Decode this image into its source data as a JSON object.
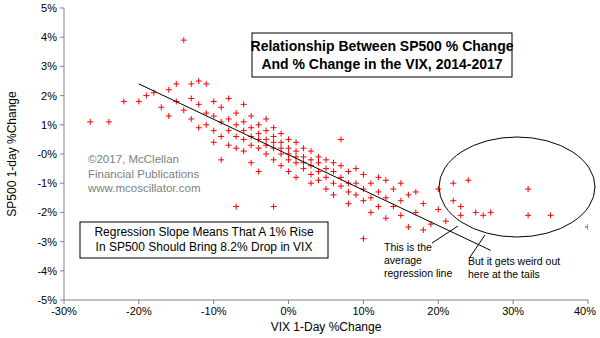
{
  "chart_data": {
    "type": "scatter",
    "title": [
      "Relationship Between SP500 % Change",
      "And % Change in the VIX, 2014-2017"
    ],
    "x_label": "VIX 1-Day %Change",
    "y_label": "SP500 1-day %Change",
    "xlim": [
      -30,
      40
    ],
    "ylim": [
      -5,
      5
    ],
    "xticks": [
      {
        "value": -30,
        "label": "-30%"
      },
      {
        "value": -20,
        "label": "-20%"
      },
      {
        "value": -10,
        "label": "-10%"
      },
      {
        "value": 0,
        "label": "0%"
      },
      {
        "value": 10,
        "label": "10%"
      },
      {
        "value": 20,
        "label": "20%"
      },
      {
        "value": 30,
        "label": "30%"
      },
      {
        "value": 40,
        "label": "40%"
      }
    ],
    "yticks": [
      {
        "value": 5,
        "label": "5%"
      },
      {
        "value": 4,
        "label": "4%"
      },
      {
        "value": 3,
        "label": "3%"
      },
      {
        "value": 2,
        "label": "2%"
      },
      {
        "value": 1,
        "label": "1%"
      },
      {
        "value": 0,
        "label": "-0%"
      },
      {
        "value": -1,
        "label": "-1%"
      },
      {
        "value": -2,
        "label": "-2%"
      },
      {
        "value": -3,
        "label": "-3%"
      },
      {
        "value": -4,
        "label": "-4%"
      },
      {
        "value": -5,
        "label": "-5%"
      }
    ],
    "grid": false,
    "series": [
      {
        "type": "scatter",
        "color": "#ff0000",
        "marker": "plus",
        "x": [
          -26.5,
          -24,
          -22,
          -20,
          -19,
          -18,
          -17,
          -16,
          -16,
          -15,
          -15,
          -14,
          -14,
          -13,
          -13,
          -13,
          -12,
          -12,
          -12,
          -11,
          -11,
          -11,
          -10,
          -10,
          -10,
          -10,
          -9,
          -9,
          -9,
          -9,
          -8,
          -8,
          -8,
          -8,
          -7,
          -7,
          -7,
          -7,
          -7,
          -6,
          -6,
          -6,
          -6,
          -6,
          -5,
          -5,
          -5,
          -5,
          -5,
          -4,
          -4,
          -4,
          -4,
          -4,
          -3,
          -3,
          -3,
          -3,
          -3,
          -2,
          -2,
          -2,
          -2,
          -2,
          -2,
          -1,
          -1,
          -1,
          -1,
          -1,
          0,
          0,
          0,
          0,
          0,
          1,
          1,
          1,
          1,
          1,
          2,
          2,
          2,
          2,
          3,
          3,
          3,
          3,
          3,
          4,
          4,
          4,
          4,
          5,
          5,
          5,
          5,
          6,
          6,
          6,
          6,
          7,
          7,
          7,
          7,
          8,
          8,
          8,
          8,
          9,
          9,
          9,
          10,
          10,
          10,
          10,
          11,
          11,
          11,
          12,
          12,
          12,
          13,
          13,
          13,
          14,
          14,
          15,
          15,
          15,
          16,
          16,
          17,
          17,
          18,
          18,
          19,
          20,
          20,
          21,
          22,
          22,
          23,
          23,
          24,
          25,
          26,
          27,
          32,
          32,
          35,
          40
        ],
        "values": [
          1.1,
          1.1,
          1.8,
          1.8,
          2.0,
          2.1,
          1.6,
          2.2,
          1.3,
          1.8,
          2.4,
          3.9,
          1.5,
          2.4,
          1.9,
          1.2,
          2.5,
          1.7,
          0.9,
          2.4,
          1.4,
          1.0,
          1.8,
          1.3,
          0.8,
          0.4,
          1.6,
          1.1,
          0.6,
          -0.2,
          1.9,
          1.2,
          0.8,
          0.3,
          1.4,
          1.0,
          0.6,
          0.2,
          -1.8,
          1.7,
          1.1,
          0.8,
          0.5,
          0.1,
          1.3,
          0.9,
          0.6,
          0.3,
          -0.3,
          1.0,
          0.7,
          0.5,
          0.2,
          -0.6,
          1.2,
          0.8,
          0.5,
          0.3,
          0.0,
          0.9,
          0.6,
          0.4,
          0.2,
          -0.2,
          -1.8,
          0.7,
          0.4,
          0.2,
          0.0,
          -0.4,
          0.5,
          0.2,
          0.0,
          -0.2,
          -0.6,
          0.4,
          0.1,
          -0.1,
          -0.3,
          -0.8,
          0.2,
          -0.1,
          -0.3,
          -0.5,
          0.1,
          -0.2,
          -0.4,
          -0.7,
          -1.0,
          -0.1,
          -0.3,
          -0.6,
          -0.9,
          -0.2,
          -0.5,
          -0.8,
          -1.2,
          -0.3,
          -0.6,
          -1.0,
          -1.4,
          -0.4,
          -0.8,
          -1.1,
          0.5,
          -0.6,
          -1.0,
          -1.3,
          -1.7,
          -0.5,
          -1.0,
          -1.4,
          -0.7,
          -1.2,
          -1.6,
          -2.9,
          -1.0,
          -1.5,
          -2.0,
          -0.8,
          -1.3,
          -1.8,
          -0.9,
          -1.5,
          -2.2,
          -1.2,
          -1.8,
          -1.0,
          -1.6,
          -2.1,
          -1.4,
          -2.5,
          -1.3,
          -2.0,
          -2.6,
          -1.7,
          -2.4,
          -1.2,
          -1.9,
          -2.3,
          -1.0,
          -1.6,
          -2.1,
          -1.8,
          -0.9,
          -2.0,
          -2.1,
          -2.0,
          -1.2,
          -2.1,
          -2.1,
          -2.5
        ]
      },
      {
        "type": "line",
        "color": "#000000",
        "line_style": "solid",
        "x": [
          -20,
          27
        ],
        "values": [
          2.4,
          -3.3
        ]
      }
    ],
    "annotations": [
      [
        "Regression Slope Means That A 1% Rise",
        "In SP500 Should Bring 8.2% Drop in VIX"
      ],
      [
        "This is the",
        "average",
        "regression line"
      ],
      [
        "But it gets weird out",
        "here at the tails"
      ],
      [
        "©2017, McClellan",
        "Financial Publications",
        "www.mcoscillator.com"
      ]
    ]
  }
}
